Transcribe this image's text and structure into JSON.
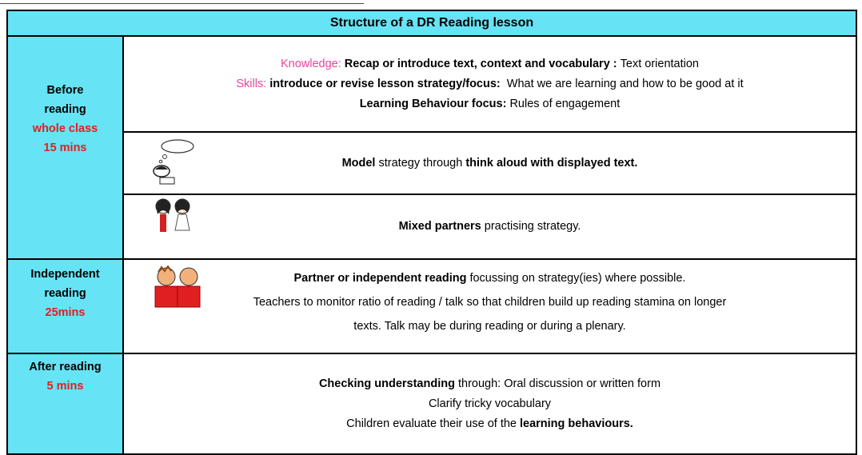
{
  "title": "Structure of a DR Reading lesson",
  "sections": [
    {
      "stage": [
        {
          "text": "Before",
          "color": "#000000"
        },
        {
          "text": "reading",
          "color": "#000000"
        },
        {
          "text": "whole class",
          "color": "#e02020"
        },
        {
          "text": "15 mins",
          "color": "#e02020"
        }
      ],
      "cells": [
        {
          "lines": [
            [
              {
                "text": "Knowledge: ",
                "style": "pink"
              },
              {
                "text": "Recap or introduce text, context and vocabulary : ",
                "style": "bold"
              },
              {
                "text": "Text orientation",
                "style": "plain"
              }
            ],
            [
              {
                "text": "Skills: ",
                "style": "pink"
              },
              {
                "text": "introduce or revise lesson strategy/focus:",
                "style": "bold"
              },
              {
                "text": "  What we are learning and how to be good at it",
                "style": "plain"
              }
            ],
            [
              {
                "text": "Learning Behaviour focus: ",
                "style": "bold"
              },
              {
                "text": "Rules of engagement",
                "style": "plain"
              }
            ]
          ]
        },
        {
          "lines": [
            [
              {
                "text": "Model",
                "style": "bold"
              },
              {
                "text": " strategy through ",
                "style": "plain"
              },
              {
                "text": "think aloud with displayed text.",
                "style": "bold"
              }
            ]
          ]
        },
        {
          "lines": [
            [
              {
                "text": "Mixed partners",
                "style": "bold"
              },
              {
                "text": " practising strategy.",
                "style": "plain"
              }
            ]
          ]
        }
      ]
    },
    {
      "stage": [
        {
          "text": "Independent",
          "color": "#000000"
        },
        {
          "text": "reading",
          "color": "#000000"
        },
        {
          "text": "25mins",
          "color": "#e02020"
        }
      ],
      "cells": [
        {
          "lines": [
            [
              {
                "text": "Partner or independent reading",
                "style": "bold"
              },
              {
                "text": " focussing on strategy(ies) where possible.",
                "style": "plain"
              }
            ],
            [
              {
                "text": "Teachers to monitor ratio of reading / talk so that children build up reading stamina on longer",
                "style": "plain"
              }
            ],
            [
              {
                "text": "texts. Talk may be during reading or during a plenary.",
                "style": "plain"
              }
            ]
          ]
        }
      ]
    },
    {
      "stage": [
        {
          "text": "After reading",
          "color": "#000000"
        },
        {
          "text": "5 mins",
          "color": "#e02020"
        }
      ],
      "cells": [
        {
          "lines": [
            [
              {
                "text": "Checking understanding",
                "style": "bold"
              },
              {
                "text": " through: Oral discussion or written form",
                "style": "plain"
              }
            ],
            [
              {
                "text": "Clarify tricky vocabulary",
                "style": "plain"
              }
            ],
            [
              {
                "text": "Children evaluate their use of the ",
                "style": "plain"
              },
              {
                "text": "learning behaviours.",
                "style": "bold"
              }
            ]
          ]
        }
      ]
    }
  ]
}
